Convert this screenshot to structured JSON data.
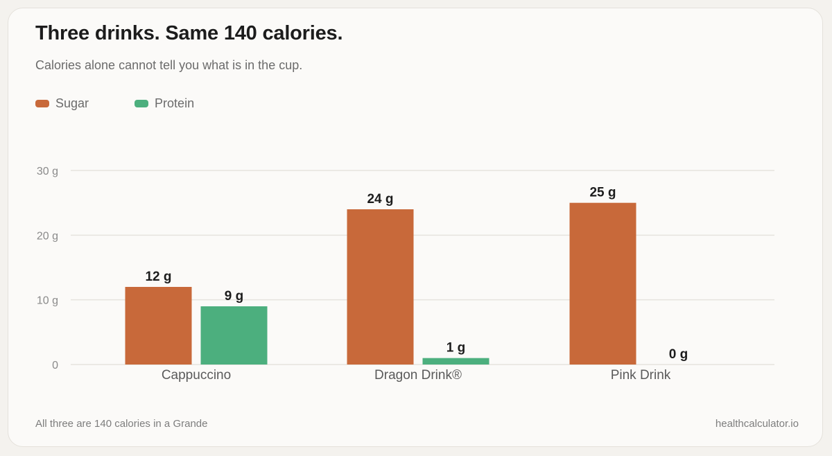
{
  "header": {
    "title": "Three drinks. Same 140 calories.",
    "subtitle": "Calories alone cannot tell you what is in the cup."
  },
  "footer": {
    "note": "All three are 140 calories in a Grande",
    "source": "healthcalculator.io"
  },
  "colors": {
    "sugar": "#c8693a",
    "protein": "#4caf7e",
    "grid": "#e6e3de"
  },
  "chart_data": {
    "type": "bar",
    "title": "Three drinks. Same 140 calories.",
    "subtitle": "Calories alone cannot tell you what is in the cup.",
    "categories": [
      "Cappuccino",
      "Dragon Drink®",
      "Pink Drink"
    ],
    "series": [
      {
        "name": "Sugar",
        "values": [
          12,
          24,
          25
        ]
      },
      {
        "name": "Protein",
        "values": [
          9,
          1,
          0
        ]
      }
    ],
    "unit": "g",
    "ylim": [
      0,
      30
    ],
    "yticks": [
      0,
      10,
      20,
      30
    ],
    "ytick_labels": [
      "0",
      "10 g",
      "20 g",
      "30 g"
    ],
    "grid": true,
    "legend": "top-left"
  }
}
